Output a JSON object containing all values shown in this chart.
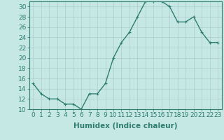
{
  "x": [
    0,
    1,
    2,
    3,
    4,
    5,
    6,
    7,
    8,
    9,
    10,
    11,
    12,
    13,
    14,
    15,
    16,
    17,
    18,
    19,
    20,
    21,
    22,
    23
  ],
  "y": [
    15,
    13,
    12,
    12,
    11,
    11,
    10,
    13,
    13,
    15,
    20,
    23,
    25,
    28,
    31,
    31,
    31,
    30,
    27,
    27,
    28,
    25,
    23,
    23
  ],
  "line_color": "#2e7d6e",
  "marker": "+",
  "bg_color": "#c5e8e5",
  "grid_color": "#b0cccc",
  "xlabel": "Humidex (Indice chaleur)",
  "ylim": [
    10,
    31
  ],
  "xlim": [
    -0.5,
    23.5
  ],
  "yticks": [
    10,
    12,
    14,
    16,
    18,
    20,
    22,
    24,
    26,
    28,
    30
  ],
  "xticks": [
    0,
    1,
    2,
    3,
    4,
    5,
    6,
    7,
    8,
    9,
    10,
    11,
    12,
    13,
    14,
    15,
    16,
    17,
    18,
    19,
    20,
    21,
    22,
    23
  ],
  "axis_color": "#2e7d6e",
  "tick_color": "#2e7d6e",
  "label_color": "#2e7d6e",
  "font_size": 6.5,
  "xlabel_fontsize": 7.5,
  "linewidth": 1.0,
  "markersize": 3.5
}
